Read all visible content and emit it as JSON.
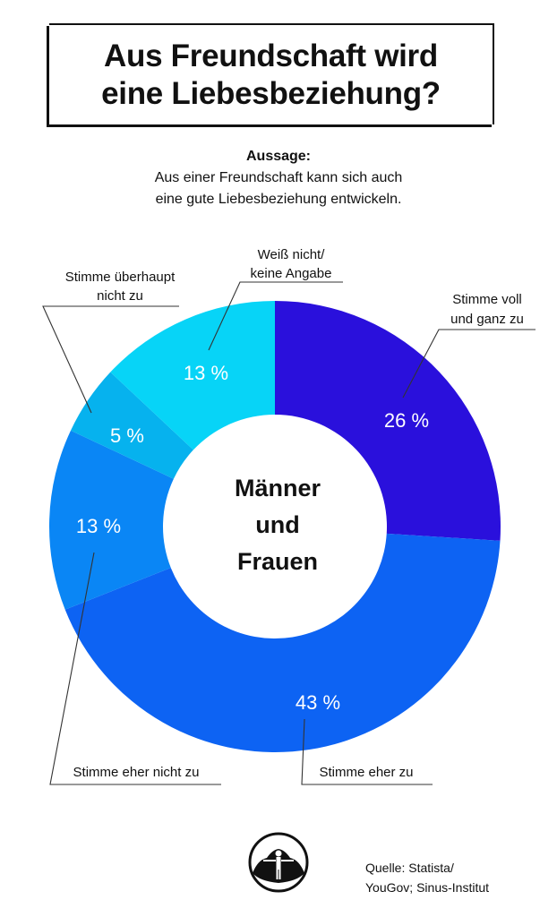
{
  "title": {
    "line1": "Aus Freundschaft wird",
    "line2": "eine Liebesbeziehung?"
  },
  "statement": {
    "label": "Aussage:",
    "line1": "Aus einer Freundschaft kann sich auch",
    "line2": "eine gute Liebesbeziehung entwickeln."
  },
  "center_label": {
    "line1": "Männer",
    "line2": "und",
    "line3": "Frauen"
  },
  "source": {
    "line1": "Quelle: Statista/",
    "line2": "YouGov; Sinus-Institut"
  },
  "colors": {
    "Stimme voll und ganz zu": "#2a10dc",
    "Stimme eher zu": "#0d63f3",
    "Stimme eher nicht zu": "#0a86f5",
    "Stimme überhaupt nicht zu": "#06b2ee",
    "Weiß nicht/ keine Angabe": "#07d4f7"
  },
  "chart_data": {
    "type": "pie",
    "donut": true,
    "unit": "%",
    "slices": [
      {
        "label": "Stimme voll und ganz zu",
        "label_lines": [
          "Stimme voll",
          "und ganz zu"
        ],
        "value": 26,
        "value_label": "26 %"
      },
      {
        "label": "Stimme eher zu",
        "label_lines": [
          "Stimme eher zu"
        ],
        "value": 43,
        "value_label": "43 %"
      },
      {
        "label": "Stimme eher nicht zu",
        "label_lines": [
          "Stimme eher nicht zu"
        ],
        "value": 13,
        "value_label": "13 %"
      },
      {
        "label": "Stimme überhaupt nicht zu",
        "label_lines": [
          "Stimme überhaupt",
          "nicht zu"
        ],
        "value": 5,
        "value_label": "5 %"
      },
      {
        "label": "Weiß nicht/ keine Angabe",
        "label_lines": [
          "Weiß nicht/",
          "keine Angabe"
        ],
        "value": 13,
        "value_label": "13 %"
      }
    ]
  }
}
